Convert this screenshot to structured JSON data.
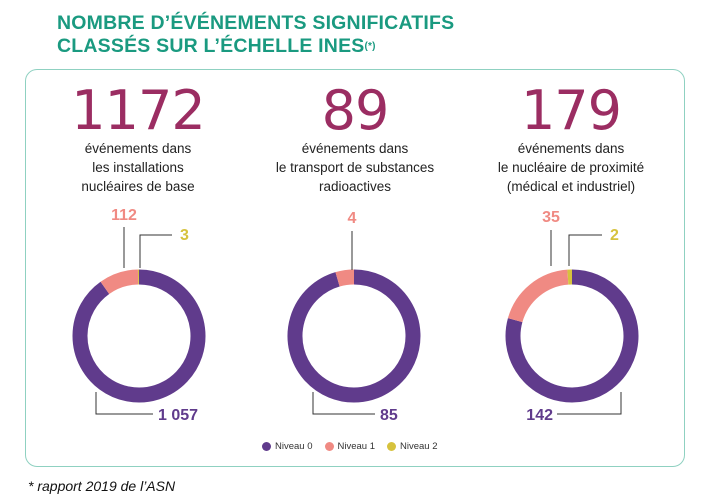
{
  "header": {
    "title_line1": "NOMBRE D’ÉVÉNEMENTS SIGNIFICATIFS",
    "title_line2": "CLASSÉS SUR L’ÉCHELLE INES",
    "title_sup": "(*)"
  },
  "footnote": "* rapport 2019 de l’ASN",
  "colors": {
    "niveau0": "#603b8c",
    "niveau1": "#f08a83",
    "niveau2": "#d6c23d",
    "title": "#1a9a80",
    "totals": "#9b2d62"
  },
  "chart_data": {
    "type": "pie",
    "legend": {
      "placement": "bottom-center",
      "entries": [
        "Niveau 0",
        "Niveau 1",
        "Niveau 2"
      ]
    },
    "charts": [
      {
        "total": "1172",
        "desc": [
          "événements dans",
          "les installations",
          "nucléaires de base"
        ],
        "slices": [
          {
            "label": "1 057",
            "value": 1057
          },
          {
            "label": "112",
            "value": 112
          },
          {
            "label": "3",
            "value": 3
          }
        ]
      },
      {
        "total": "89",
        "desc": [
          "événements dans",
          "le transport de substances",
          "radioactives"
        ],
        "slices": [
          {
            "label": "85",
            "value": 85
          },
          {
            "label": "4",
            "value": 4
          }
        ]
      },
      {
        "total": "179",
        "desc": [
          "événements dans",
          "le nucléaire de proximité",
          "(médical et industriel)"
        ],
        "slices": [
          {
            "label": "142",
            "value": 142
          },
          {
            "label": "35",
            "value": 35
          },
          {
            "label": "2",
            "value": 2
          }
        ]
      }
    ]
  }
}
